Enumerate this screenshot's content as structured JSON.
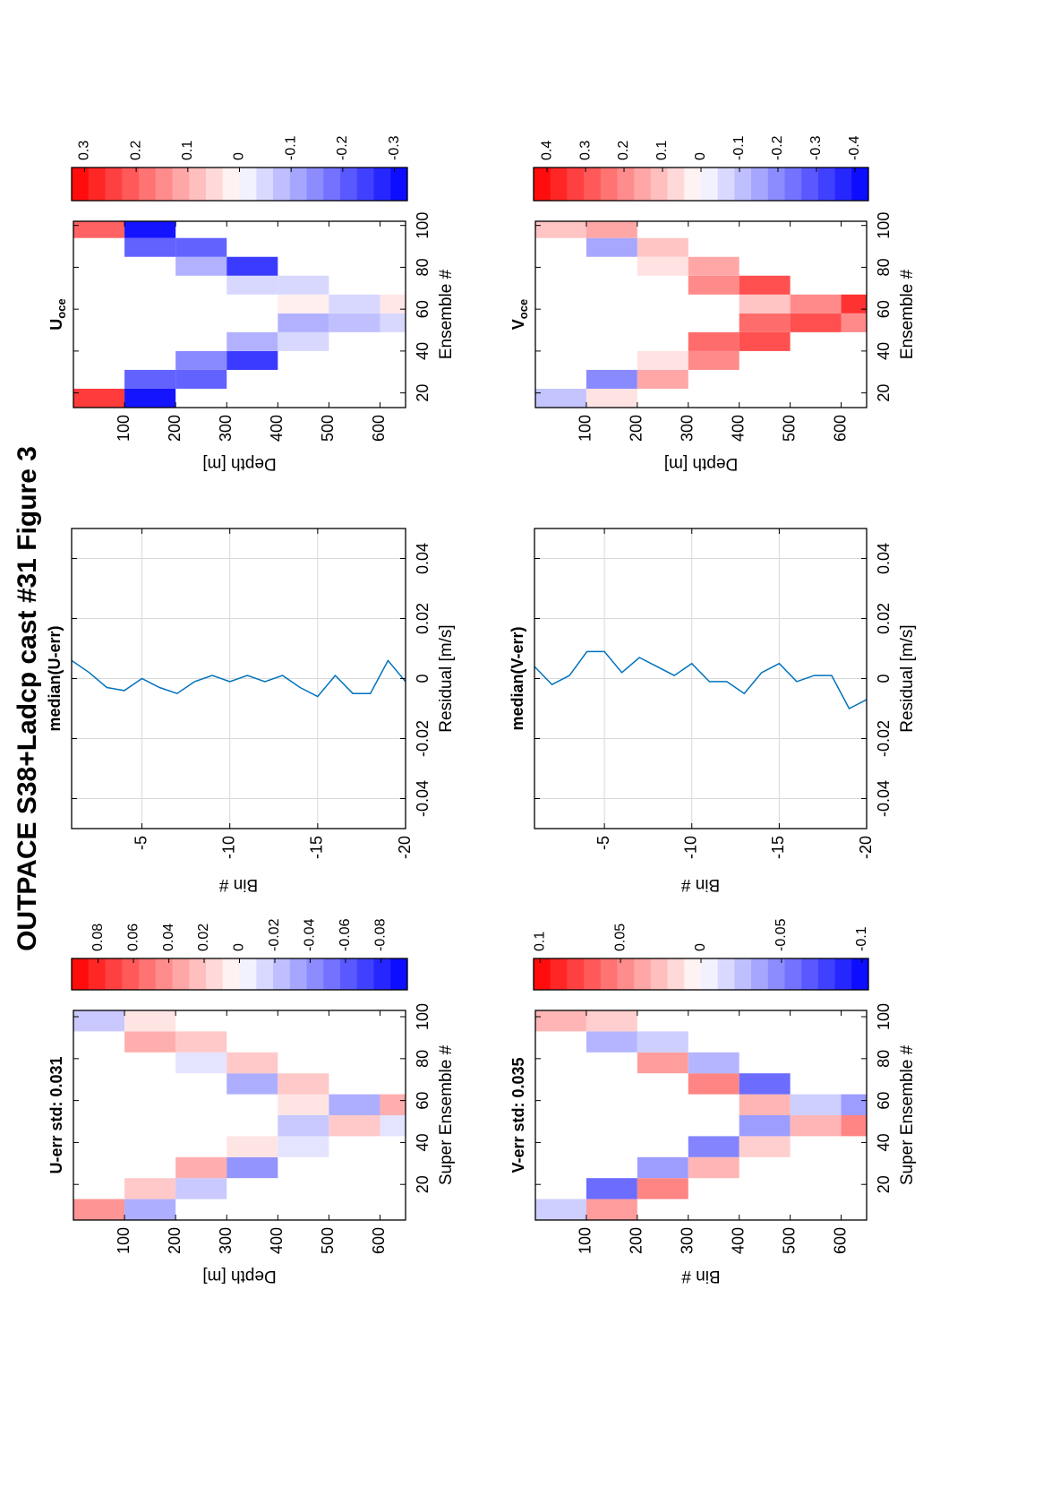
{
  "title": "OUTPACE S38+Ladcp cast #31  Figure 3",
  "chart_data": [
    {
      "type": "heatmap",
      "title": "U-err std: 0.031",
      "xlabel": "Super Ensemble #",
      "ylabel": "Depth [m]",
      "x_edges": [
        3,
        13,
        23,
        33,
        43,
        53,
        63,
        73,
        83,
        93,
        103
      ],
      "y_edges": [
        0,
        100,
        200,
        300,
        400,
        500,
        600,
        650
      ],
      "z": [
        [
          0.04,
          null,
          null,
          null,
          null,
          null,
          null,
          null,
          null,
          -0.02
        ],
        [
          -0.03,
          0.02,
          null,
          null,
          null,
          null,
          null,
          null,
          0.03,
          0.01
        ],
        [
          null,
          -0.02,
          0.03,
          null,
          null,
          null,
          null,
          -0.01,
          0.02,
          null
        ],
        [
          null,
          null,
          -0.04,
          0.01,
          null,
          null,
          -0.03,
          0.02,
          null,
          null
        ],
        [
          null,
          null,
          null,
          -0.01,
          -0.02,
          0.01,
          0.02,
          null,
          null,
          null
        ],
        [
          null,
          null,
          null,
          null,
          0.02,
          -0.03,
          null,
          null,
          null,
          null
        ],
        [
          null,
          null,
          null,
          null,
          -0.01,
          0.03,
          null,
          null,
          null,
          null
        ]
      ],
      "xlim": [
        3,
        103
      ],
      "ylim": [
        0,
        650
      ],
      "xticks": [
        20,
        40,
        60,
        80,
        100
      ],
      "yticks": [
        100,
        200,
        300,
        400,
        500,
        600
      ],
      "clim": [
        -0.095,
        0.095
      ],
      "cticks": [
        0.08,
        0.06,
        0.04,
        0.02,
        0,
        -0.02,
        -0.04,
        -0.06,
        -0.08
      ],
      "colormap": [
        "#ff0000",
        "#ffffff",
        "#0000ff"
      ]
    },
    {
      "type": "line",
      "title": "median(U-err)",
      "xlabel": "Residual [m/s]",
      "ylabel": "Bin #",
      "bins": [
        -1,
        -2,
        -3,
        -4,
        -5,
        -6,
        -7,
        -8,
        -9,
        -10,
        -11,
        -12,
        -13,
        -14,
        -15,
        -16,
        -17,
        -18,
        -19,
        -20
      ],
      "values": [
        0.006,
        0.002,
        -0.003,
        -0.004,
        0,
        -0.003,
        -0.005,
        -0.001,
        0.001,
        -0.001,
        0.001,
        -0.001,
        0.001,
        -0.003,
        -0.006,
        0.001,
        -0.005,
        -0.005,
        0.006,
        -0.001
      ],
      "color": "#0072bd",
      "xlim": [
        -0.05,
        0.05
      ],
      "ylim": [
        -1,
        -20
      ],
      "xticks": [
        -0.04,
        -0.02,
        0,
        0.02,
        0.04
      ],
      "yticks": [
        -5,
        -10,
        -15,
        -20
      ],
      "grid": true
    },
    {
      "type": "heatmap",
      "title": "U",
      "title_sub": "oce",
      "xlabel": "Ensemble #",
      "ylabel": "Depth [m]",
      "x_edges": [
        13,
        22,
        31,
        40,
        49,
        58,
        67,
        76,
        85,
        94,
        102
      ],
      "y_edges": [
        0,
        100,
        200,
        300,
        400,
        500,
        600,
        650
      ],
      "z": [
        [
          0.25,
          null,
          null,
          null,
          null,
          null,
          null,
          null,
          null,
          0.2
        ],
        [
          -0.3,
          -0.2,
          null,
          null,
          null,
          null,
          null,
          null,
          -0.2,
          -0.3
        ],
        [
          null,
          -0.2,
          -0.15,
          null,
          null,
          null,
          null,
          -0.1,
          -0.2,
          null
        ],
        [
          null,
          null,
          -0.25,
          -0.1,
          null,
          null,
          -0.05,
          -0.25,
          null,
          null
        ],
        [
          null,
          null,
          null,
          -0.05,
          -0.1,
          0.02,
          -0.05,
          null,
          null,
          null
        ],
        [
          null,
          null,
          null,
          null,
          -0.08,
          -0.05,
          null,
          null,
          null,
          null
        ],
        [
          null,
          null,
          null,
          null,
          -0.05,
          0.03,
          null,
          null,
          null,
          null
        ]
      ],
      "xlim": [
        13,
        102
      ],
      "ylim": [
        0,
        650
      ],
      "xticks": [
        20,
        40,
        60,
        80,
        100
      ],
      "yticks": [
        100,
        200,
        300,
        400,
        500,
        600
      ],
      "clim": [
        -0.325,
        0.325
      ],
      "cticks": [
        0.3,
        0.2,
        0.1,
        0,
        -0.1,
        -0.2,
        -0.3
      ],
      "colormap": [
        "#ff0000",
        "#ffffff",
        "#0000ff"
      ]
    },
    {
      "type": "heatmap",
      "title": "V-err std: 0.035",
      "xlabel": "Super Ensemble #",
      "ylabel": "Bin #",
      "x_edges": [
        3,
        13,
        23,
        33,
        43,
        53,
        63,
        73,
        83,
        93,
        103
      ],
      "y_edges": [
        0,
        100,
        200,
        300,
        400,
        500,
        600,
        650
      ],
      "z": [
        [
          -0.02,
          null,
          null,
          null,
          null,
          null,
          null,
          null,
          null,
          0.03
        ],
        [
          0.04,
          -0.06,
          null,
          null,
          null,
          null,
          null,
          null,
          -0.03,
          0.02
        ],
        [
          null,
          0.05,
          -0.04,
          null,
          null,
          null,
          null,
          0.04,
          -0.02,
          null
        ],
        [
          null,
          null,
          0.03,
          -0.05,
          null,
          null,
          0.05,
          -0.03,
          null,
          null
        ],
        [
          null,
          null,
          null,
          0.02,
          -0.04,
          0.03,
          -0.06,
          null,
          null,
          null
        ],
        [
          null,
          null,
          null,
          null,
          0.03,
          -0.02,
          null,
          null,
          null,
          null
        ],
        [
          null,
          null,
          null,
          null,
          0.05,
          -0.04,
          null,
          null,
          null,
          null
        ]
      ],
      "xlim": [
        3,
        103
      ],
      "ylim": [
        0,
        650
      ],
      "xticks": [
        20,
        40,
        60,
        80,
        100
      ],
      "yticks": [
        100,
        200,
        300,
        400,
        500,
        600
      ],
      "clim": [
        -0.104,
        0.104
      ],
      "cticks": [
        0.1,
        0.05,
        0,
        -0.05,
        -0.1
      ],
      "colormap": [
        "#ff0000",
        "#ffffff",
        "#0000ff"
      ]
    },
    {
      "type": "line",
      "title": "median(V-err)",
      "xlabel": "Residual [m/s]",
      "ylabel": "Bin #",
      "bins": [
        -1,
        -2,
        -3,
        -4,
        -5,
        -6,
        -7,
        -8,
        -9,
        -10,
        -11,
        -12,
        -13,
        -14,
        -15,
        -16,
        -17,
        -18,
        -19,
        -20
      ],
      "values": [
        0.004,
        -0.002,
        0.001,
        0.009,
        0.009,
        0.002,
        0.007,
        0.004,
        0.001,
        0.005,
        -0.001,
        -0.001,
        -0.005,
        0.002,
        0.005,
        -0.001,
        0.001,
        0.001,
        -0.01,
        -0.007
      ],
      "color": "#0072bd",
      "xlim": [
        -0.05,
        0.05
      ],
      "ylim": [
        -1,
        -20
      ],
      "xticks": [
        -0.04,
        -0.02,
        0,
        0.02,
        0.04
      ],
      "yticks": [
        -5,
        -10,
        -15,
        -20
      ],
      "grid": true
    },
    {
      "type": "heatmap",
      "title": "V",
      "title_sub": "oce",
      "xlabel": "Ensemble #",
      "ylabel": "Depth [m]",
      "x_edges": [
        13,
        22,
        31,
        40,
        49,
        58,
        67,
        76,
        85,
        94,
        102
      ],
      "y_edges": [
        0,
        100,
        200,
        300,
        400,
        500,
        600,
        650
      ],
      "z": [
        [
          -0.1,
          null,
          null,
          null,
          null,
          null,
          null,
          null,
          null,
          0.1
        ],
        [
          0.05,
          -0.2,
          null,
          null,
          null,
          null,
          null,
          null,
          -0.15,
          0.15
        ],
        [
          null,
          0.15,
          0.05,
          null,
          null,
          null,
          null,
          0.05,
          0.1,
          null
        ],
        [
          null,
          null,
          0.2,
          0.25,
          null,
          null,
          0.2,
          0.15,
          null,
          null
        ],
        [
          null,
          null,
          null,
          0.3,
          0.25,
          0.1,
          0.3,
          null,
          null,
          null
        ],
        [
          null,
          null,
          null,
          null,
          0.3,
          0.2,
          null,
          null,
          null,
          null
        ],
        [
          null,
          null,
          null,
          null,
          0.2,
          0.35,
          null,
          null,
          null,
          null
        ]
      ],
      "xlim": [
        13,
        102
      ],
      "ylim": [
        0,
        650
      ],
      "xticks": [
        20,
        40,
        60,
        80,
        100
      ],
      "yticks": [
        100,
        200,
        300,
        400,
        500,
        600
      ],
      "clim": [
        -0.435,
        0.435
      ],
      "cticks": [
        0.4,
        0.3,
        0.2,
        0.1,
        0,
        -0.1,
        -0.2,
        -0.3,
        -0.4
      ],
      "colormap": [
        "#ff0000",
        "#ffffff",
        "#0000ff"
      ]
    }
  ]
}
